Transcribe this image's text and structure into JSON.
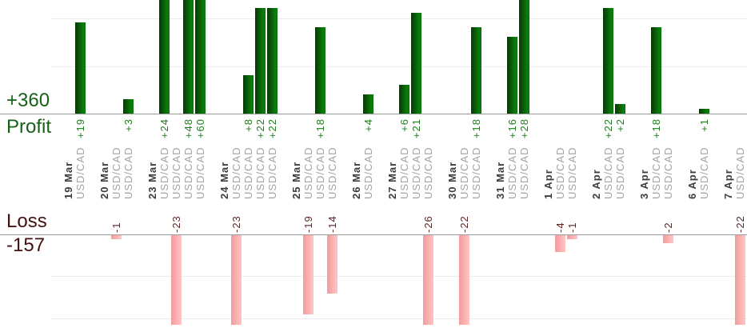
{
  "chart_data": {
    "type": "bar",
    "title": "",
    "instrument": "USD/CAD",
    "profit_axis": {
      "label": "Profit",
      "total": "+360",
      "gridlines": [
        10,
        20
      ],
      "units_per_gridline": 10
    },
    "loss_axis": {
      "label": "Loss",
      "total": "-157",
      "gridlines": [
        -10,
        -20
      ],
      "units_per_gridline": 10
    },
    "layout": {
      "legend": "none",
      "grid": "on",
      "bars_clipped_at_top": [
        24,
        28,
        48,
        60
      ],
      "bars_clipped_at_bottom": [
        -22,
        -23,
        -26
      ]
    },
    "groups": [
      {
        "date": "19 Mar",
        "values": [
          19
        ]
      },
      {
        "date": "20 Mar",
        "values": [
          -1,
          3
        ]
      },
      {
        "date": "23 Mar",
        "values": [
          24,
          -23,
          48,
          60
        ]
      },
      {
        "date": "24 Mar",
        "values": [
          -23,
          8,
          22,
          22
        ]
      },
      {
        "date": "25 Mar",
        "values": [
          -19,
          18,
          -14
        ]
      },
      {
        "date": "26 Mar",
        "values": [
          4
        ]
      },
      {
        "date": "27 Mar",
        "values": [
          6,
          21,
          -26
        ]
      },
      {
        "date": "30 Mar",
        "values": [
          -22,
          18
        ]
      },
      {
        "date": "31 Mar",
        "values": [
          16,
          28
        ]
      },
      {
        "date": "1 Apr",
        "values": [
          -4,
          -1
        ]
      },
      {
        "date": "2 Apr",
        "values": [
          22,
          2
        ]
      },
      {
        "date": "3 Apr",
        "values": [
          18,
          -2
        ]
      },
      {
        "date": "6 Apr",
        "values": [
          1
        ]
      },
      {
        "date": "7 Apr",
        "values": [
          -22
        ]
      }
    ]
  },
  "colors": {
    "profit-bar-dark": "#063806",
    "profit-bar-light": "#0c7e0c",
    "profit-bar-mid": "#0a700a",
    "loss-bar-dark": "#f49b9b",
    "loss-bar-light": "#ffc6c6",
    "profit-label": "#1e7e1e",
    "profit-axis-label": "#176117",
    "loss-label": "#5e2323",
    "loss-axis-label": "#431111",
    "date-label": "#3d3d3d",
    "instrument-label": "#a3a3a3",
    "axis-line": "#9a9a9a",
    "gridline": "#ececec"
  }
}
